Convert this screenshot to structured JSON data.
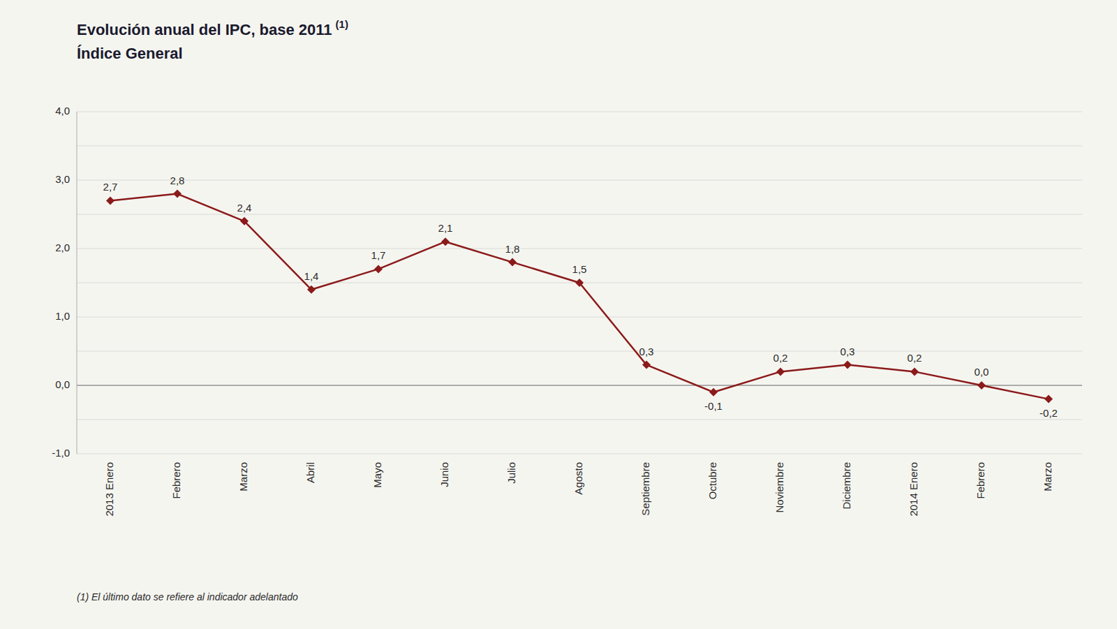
{
  "chart_data": {
    "type": "line",
    "title": "Evolución anual del IPC, base 2011",
    "title_note": "(1)",
    "subtitle": "Índice General",
    "footnote": "(1) El último dato se refiere al indicador adelantado",
    "categories": [
      "2013 Enero",
      "Febrero",
      "Marzo",
      "Abril",
      "Mayo",
      "Junio",
      "Julio",
      "Agosto",
      "Septiembre",
      "Octubre",
      "Noviembre",
      "Diciembre",
      "2014 Enero",
      "Febrero",
      "Marzo"
    ],
    "values": [
      2.7,
      2.8,
      2.4,
      1.4,
      1.7,
      2.1,
      1.8,
      1.5,
      0.3,
      -0.1,
      0.2,
      0.3,
      0.2,
      0.0,
      -0.2
    ],
    "value_labels": [
      "2,7",
      "2,8",
      "2,4",
      "1,4",
      "1,7",
      "2,1",
      "1,8",
      "1,5",
      "0,3",
      "-0,1",
      "0,2",
      "0,3",
      "0,2",
      "0,0",
      "-0,2"
    ],
    "data_labels": true,
    "color": "#8B1A1A",
    "marker": "diamond",
    "grid": true,
    "ylim": [
      -1.0,
      4.0
    ],
    "yticks": [
      {
        "value": -1.0,
        "label": "-1,0"
      },
      {
        "value": -0.5,
        "label": null
      },
      {
        "value": 0.0,
        "label": "0,0"
      },
      {
        "value": 0.5,
        "label": null
      },
      {
        "value": 1.0,
        "label": "1,0"
      },
      {
        "value": 1.5,
        "label": null
      },
      {
        "value": 2.0,
        "label": "2,0"
      },
      {
        "value": 2.5,
        "label": null
      },
      {
        "value": 3.0,
        "label": "3,0"
      },
      {
        "value": 3.5,
        "label": null
      },
      {
        "value": 4.0,
        "label": "4,0"
      }
    ]
  }
}
